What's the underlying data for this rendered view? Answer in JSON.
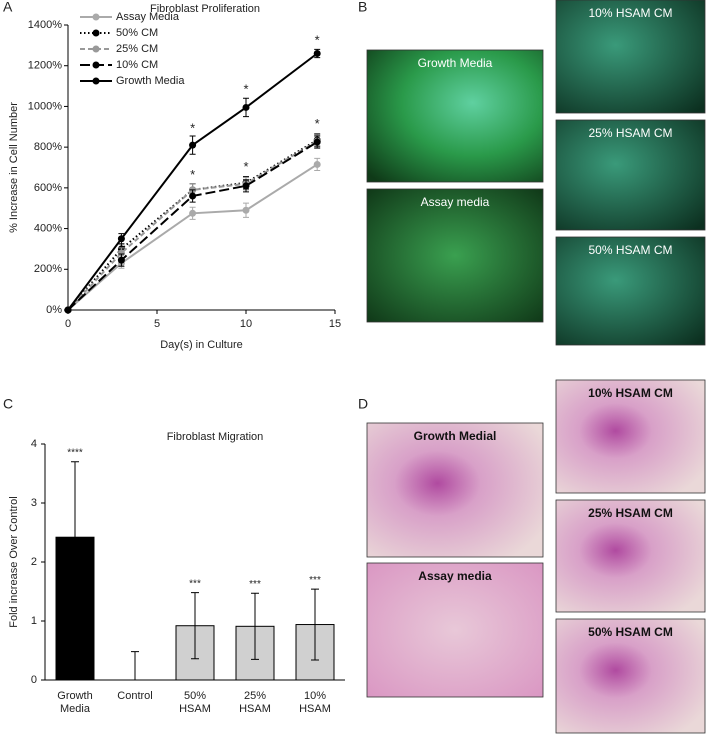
{
  "panel_labels": [
    "A",
    "B",
    "C",
    "D"
  ],
  "images_b": [
    "Growth Media",
    "Assay media",
    "10% HSAM CM",
    "25% HSAM CM",
    "50% HSAM CM"
  ],
  "images_d": [
    "Growth Medial",
    "Assay media",
    "10% HSAM CM",
    "25% HSAM CM",
    "50% HSAM CM"
  ],
  "chart_data": [
    {
      "type": "line",
      "title": "Fibroblast Proliferation",
      "x_label": "Day(s) in Culture",
      "y_label": "% Increase in Cell Number",
      "x": [
        0,
        3,
        7,
        10,
        14
      ],
      "xlim": [
        0,
        15
      ],
      "xticks": [
        0,
        5,
        10,
        15
      ],
      "ylim": [
        0,
        1400
      ],
      "yticks": [
        {
          "value": 0,
          "label": "0%"
        },
        {
          "value": 200,
          "label": "200%"
        },
        {
          "value": 400,
          "label": "400%"
        },
        {
          "value": 600,
          "label": "600%"
        },
        {
          "value": 800,
          "label": "800%"
        },
        {
          "value": 1000,
          "label": "1000%"
        },
        {
          "value": 1200,
          "label": "1200%"
        },
        {
          "value": 1400,
          "label": "1400%"
        }
      ],
      "legend": "upper left",
      "series": [
        {
          "name": "Assay Media",
          "color": "#aaaaaa",
          "dash": "solid",
          "values": [
            0,
            230,
            475,
            490,
            715
          ],
          "errors": [
            0,
            25,
            30,
            35,
            30
          ]
        },
        {
          "name": "50% CM",
          "color": "#000000",
          "dash": "dotted",
          "values": [
            0,
            300,
            590,
            625,
            835
          ],
          "errors": [
            0,
            25,
            30,
            30,
            30
          ]
        },
        {
          "name": "25% CM",
          "color": "#999999",
          "dash": "dashed",
          "values": [
            0,
            280,
            590,
            620,
            830
          ],
          "errors": [
            0,
            25,
            30,
            30,
            30
          ]
        },
        {
          "name": "10% CM",
          "color": "#000000",
          "dash": "longdash",
          "values": [
            0,
            245,
            560,
            610,
            825
          ],
          "errors": [
            0,
            30,
            30,
            30,
            30
          ]
        },
        {
          "name": "Growth Media",
          "color": "#000000",
          "dash": "solid",
          "values": [
            0,
            350,
            810,
            995,
            1260
          ],
          "errors": [
            0,
            25,
            45,
            45,
            20
          ]
        }
      ],
      "annotations": [
        {
          "text": "*",
          "x": 7,
          "y": 890
        },
        {
          "text": "*",
          "x": 10,
          "y": 1080
        },
        {
          "text": "*",
          "x": 14,
          "y": 1320
        },
        {
          "text": "*",
          "x": 7,
          "y": 660
        },
        {
          "text": "*",
          "x": 10,
          "y": 700
        },
        {
          "text": "*",
          "x": 14,
          "y": 910
        }
      ]
    },
    {
      "type": "bar",
      "title": "Fibroblast Migration",
      "y_label": "Fold increase Over Control",
      "categories": [
        "Growth Media",
        "Control",
        "50% HSAM",
        "25% HSAM",
        "10% HSAM"
      ],
      "values": [
        2.42,
        0,
        0.92,
        0.91,
        0.94
      ],
      "errors": [
        1.28,
        0.48,
        0.56,
        0.56,
        0.6
      ],
      "colors": [
        "#000000",
        "#d0d0d0",
        "#d0d0d0",
        "#d0d0d0",
        "#d0d0d0"
      ],
      "significance": [
        "****",
        null,
        "***",
        "***",
        "***"
      ],
      "ylim": [
        0,
        4
      ],
      "yticks": [
        0,
        1,
        2,
        3,
        4
      ]
    }
  ]
}
